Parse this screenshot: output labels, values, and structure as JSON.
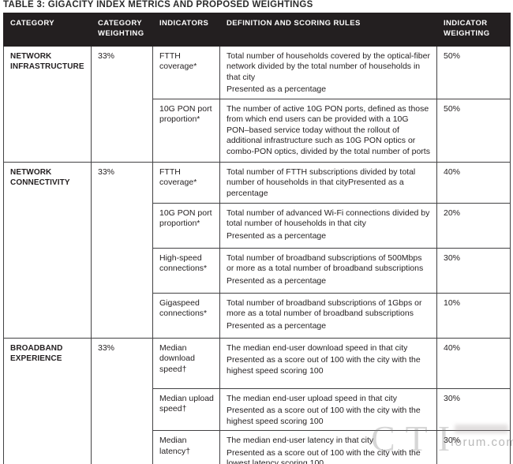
{
  "title": "TABLE 3: GIGACITY INDEX METRICS AND PROPOSED WEIGHTINGS",
  "colors": {
    "header_bg": "#231f20",
    "header_text": "#ffffff",
    "body_border": "#434244",
    "body_text": "#231f20"
  },
  "columns": [
    "CATEGORY",
    "CATEGORY WEIGHTING",
    "INDICATORS",
    "DEFINITION AND SCORING RULES",
    "INDICATOR WEIGHTING"
  ],
  "sections": [
    {
      "category": "NETWORK INFRASTRUCTURE",
      "weighting": "33%",
      "rows": [
        {
          "indicator": "FTTH coverage*",
          "definition": "Total number of households covered by the optical-fiber network divided by the total number of households in that city",
          "presented": "Presented as a percentage",
          "weight": "50%"
        },
        {
          "indicator": "10G PON port proportion*",
          "definition": "The number of active 10G PON ports, defined as those from which end users can be provided with a 10G PON–based service today without the rollout of additional infrastructure such as 10G PON optics or combo-PON optics, divided by the total number of ports",
          "presented": "",
          "weight": "50%"
        }
      ]
    },
    {
      "category": "NETWORK CONNECTIVITY",
      "weighting": "33%",
      "rows": [
        {
          "indicator": "FTTH coverage*",
          "definition": "Total number of FTTH subscriptions divided by total number of households in that cityPresented as a percentage",
          "presented": "",
          "weight": "40%"
        },
        {
          "indicator": "10G PON port proportion*",
          "definition": "Total number of advanced Wi-Fi connections divided by total number of households in that city",
          "presented": "Presented as a percentage",
          "weight": "20%"
        },
        {
          "indicator": "High-speed connections*",
          "definition": "Total number of broadband subscriptions of 500Mbps or more as a total number of broadband subscriptions",
          "presented": "Presented as a percentage",
          "weight": "30%"
        },
        {
          "indicator": "Gigaspeed connections*",
          "definition": "Total number of broadband subscriptions of 1Gbps or more as a total number of broadband subscriptions",
          "presented": "Presented as a percentage",
          "weight": "10%"
        }
      ]
    },
    {
      "category": "BROADBAND EXPERIENCE",
      "weighting": "33%",
      "rows": [
        {
          "indicator": "Median download speed†",
          "definition": "The median end-user download speed in that city",
          "presented": "Presented as a score out of 100 with the city with the highest speed scoring 100",
          "weight": "40%"
        },
        {
          "indicator": "Median upload speed†",
          "definition": "The median end-user upload speed in that city",
          "presented": "Presented as a score out of 100 with the city with the highest speed scoring 100",
          "weight": "30%"
        },
        {
          "indicator": "Median latency†",
          "definition": "The median end-user latency in that city",
          "presented": "Presented as a score out of 100 with the city with the lowest latency scoring 100",
          "weight": "30%"
        }
      ]
    }
  ],
  "watermark": {
    "logo": "CTI",
    "site": "forum.com"
  }
}
